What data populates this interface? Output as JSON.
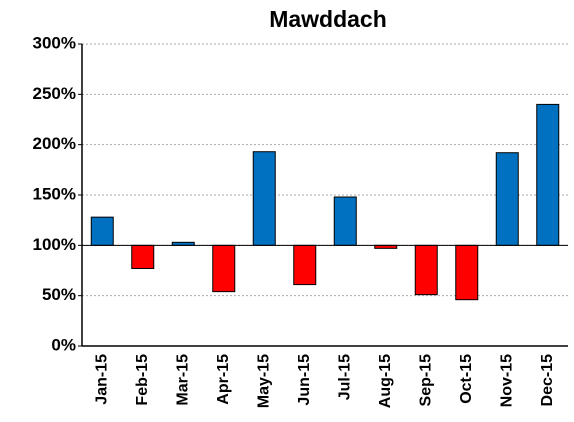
{
  "chart_data": {
    "type": "bar",
    "title": "Mawddach",
    "categories": [
      "Jan-15",
      "Feb-15",
      "Mar-15",
      "Apr-15",
      "May-15",
      "Jun-15",
      "Jul-15",
      "Aug-15",
      "Sep-15",
      "Oct-15",
      "Nov-15",
      "Dec-15"
    ],
    "values": [
      128,
      77,
      103,
      54,
      193,
      61,
      148,
      97,
      51,
      46,
      192,
      240
    ],
    "colors": [
      "#0070c0",
      "#ff0000",
      "#0070c0",
      "#ff0000",
      "#0070c0",
      "#ff0000",
      "#0070c0",
      "#ff0000",
      "#ff0000",
      "#ff0000",
      "#0070c0",
      "#0070c0"
    ],
    "baseline": 100,
    "ylim": [
      0,
      300
    ],
    "yticks": [
      {
        "value": 0,
        "label": "0%"
      },
      {
        "value": 50,
        "label": "50%"
      },
      {
        "value": 100,
        "label": "100%"
      },
      {
        "value": 150,
        "label": "150%"
      },
      {
        "value": 200,
        "label": "200%"
      },
      {
        "value": 250,
        "label": "250%"
      },
      {
        "value": 300,
        "label": "300%"
      }
    ],
    "grid": true
  }
}
